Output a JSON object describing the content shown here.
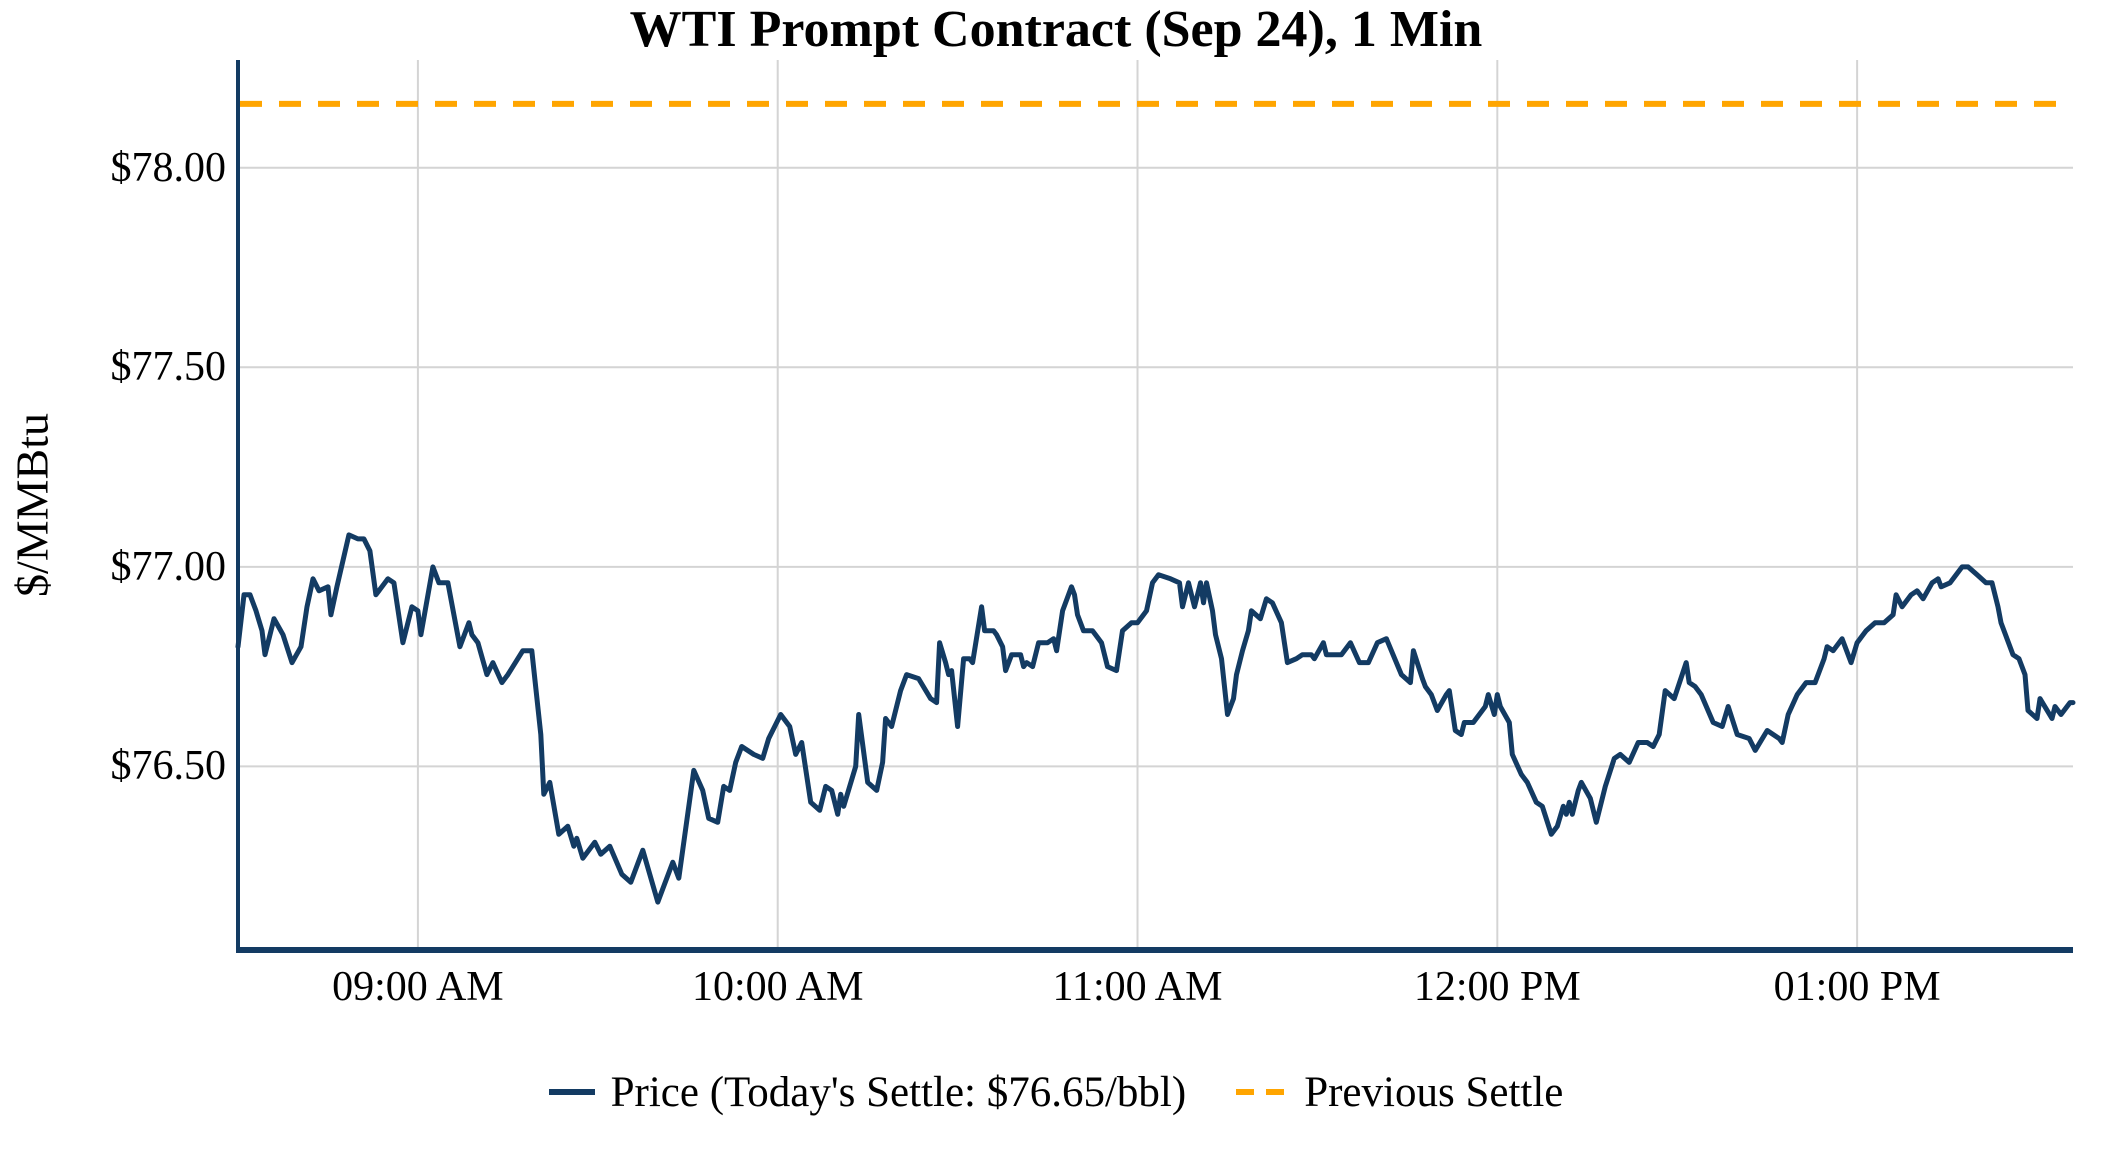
{
  "title": "WTI Prompt Contract (Sep 24), 1 Min",
  "y_axis_title": "$/MMBtu",
  "legend": {
    "price_label": "Price (Today's Settle: $76.65/bbl)",
    "previous_settle_label": "Previous Settle"
  },
  "colors": {
    "price_line": "#133b63",
    "previous_settle_line": "#ffa500",
    "gridline": "#d4d4d4",
    "axis": "#133b63",
    "text": "#000000",
    "background": "#ffffff"
  },
  "chart_data": {
    "type": "line",
    "title": "WTI Prompt Contract (Sep 24), 1 Min",
    "xlabel": "",
    "ylabel": "$/MMBtu",
    "grid": true,
    "legend_position": "bottom-center",
    "y_axis": {
      "ticks": [
        {
          "label": "$78.00",
          "value": 78.0
        },
        {
          "label": "$77.50",
          "value": 77.5
        },
        {
          "label": "$77.00",
          "value": 77.0
        },
        {
          "label": "$76.50",
          "value": 76.5
        }
      ],
      "ylim": [
        76.04,
        78.27
      ]
    },
    "x_axis": {
      "unit": "minutes after 08:30 AM",
      "domain": [
        0,
        306
      ],
      "ticks": [
        {
          "label": "09:00 AM",
          "minutes": 30
        },
        {
          "label": "10:00 AM",
          "minutes": 90
        },
        {
          "label": "11:00 AM",
          "minutes": 150
        },
        {
          "label": "12:00 PM",
          "minutes": 210
        },
        {
          "label": "01:00 PM",
          "minutes": 270
        }
      ]
    },
    "previous_settle": 78.16,
    "todays_settle": 76.65,
    "series": [
      {
        "name": "Price",
        "style": "solid",
        "points": [
          [
            0,
            76.8
          ],
          [
            1,
            76.93
          ],
          [
            2,
            76.93
          ],
          [
            3,
            76.89
          ],
          [
            4,
            76.84
          ],
          [
            4.5,
            76.78
          ],
          [
            6,
            76.87
          ],
          [
            7.5,
            76.83
          ],
          [
            9,
            76.76
          ],
          [
            10.5,
            76.8
          ],
          [
            11.5,
            76.9
          ],
          [
            12.5,
            76.97
          ],
          [
            13.5,
            76.94
          ],
          [
            15,
            76.95
          ],
          [
            15.5,
            76.88
          ],
          [
            16.5,
            76.95
          ],
          [
            18.5,
            77.08
          ],
          [
            20,
            77.07
          ],
          [
            21,
            77.07
          ],
          [
            22,
            77.04
          ],
          [
            23,
            76.93
          ],
          [
            25,
            76.97
          ],
          [
            26,
            76.96
          ],
          [
            27.5,
            76.81
          ],
          [
            29,
            76.9
          ],
          [
            30,
            76.89
          ],
          [
            30.5,
            76.83
          ],
          [
            32.5,
            77.0
          ],
          [
            33.5,
            76.96
          ],
          [
            35,
            76.96
          ],
          [
            37,
            76.8
          ],
          [
            38.5,
            76.86
          ],
          [
            39,
            76.83
          ],
          [
            40,
            76.81
          ],
          [
            41.5,
            76.73
          ],
          [
            42.5,
            76.76
          ],
          [
            44,
            76.71
          ],
          [
            45,
            76.73
          ],
          [
            47.5,
            76.79
          ],
          [
            49,
            76.79
          ],
          [
            50.5,
            76.58
          ],
          [
            51,
            76.43
          ],
          [
            52,
            76.46
          ],
          [
            53.5,
            76.33
          ],
          [
            55,
            76.35
          ],
          [
            56,
            76.3
          ],
          [
            56.5,
            76.32
          ],
          [
            57.5,
            76.27
          ],
          [
            59.5,
            76.31
          ],
          [
            60.5,
            76.28
          ],
          [
            62,
            76.3
          ],
          [
            64,
            76.23
          ],
          [
            65.5,
            76.21
          ],
          [
            67.5,
            76.29
          ],
          [
            70,
            76.16
          ],
          [
            71,
            76.2
          ],
          [
            72.5,
            76.26
          ],
          [
            73.5,
            76.22
          ],
          [
            76,
            76.49
          ],
          [
            77.5,
            76.44
          ],
          [
            78.5,
            76.37
          ],
          [
            80,
            76.36
          ],
          [
            81,
            76.45
          ],
          [
            82,
            76.44
          ],
          [
            83,
            76.51
          ],
          [
            84,
            76.55
          ],
          [
            86,
            76.53
          ],
          [
            87.5,
            76.52
          ],
          [
            88.5,
            76.57
          ],
          [
            90.5,
            76.63
          ],
          [
            92,
            76.6
          ],
          [
            93,
            76.53
          ],
          [
            94,
            76.56
          ],
          [
            95.5,
            76.41
          ],
          [
            97,
            76.39
          ],
          [
            98,
            76.45
          ],
          [
            99,
            76.44
          ],
          [
            100,
            76.38
          ],
          [
            100.5,
            76.43
          ],
          [
            101,
            76.4
          ],
          [
            103,
            76.5
          ],
          [
            103.5,
            76.63
          ],
          [
            105,
            76.46
          ],
          [
            106.5,
            76.44
          ],
          [
            107.5,
            76.51
          ],
          [
            108,
            76.62
          ],
          [
            109,
            76.6
          ],
          [
            110.5,
            76.69
          ],
          [
            111.5,
            76.73
          ],
          [
            113.5,
            76.72
          ],
          [
            115.5,
            76.67
          ],
          [
            116.5,
            76.66
          ],
          [
            117,
            76.81
          ],
          [
            118,
            76.76
          ],
          [
            118.5,
            76.73
          ],
          [
            119,
            76.74
          ],
          [
            120,
            76.6
          ],
          [
            121,
            76.77
          ],
          [
            122,
            76.77
          ],
          [
            122.5,
            76.76
          ],
          [
            124,
            76.9
          ],
          [
            124.5,
            76.84
          ],
          [
            126,
            76.84
          ],
          [
            126.5,
            76.83
          ],
          [
            127.5,
            76.8
          ],
          [
            128,
            76.74
          ],
          [
            129,
            76.78
          ],
          [
            130.5,
            76.78
          ],
          [
            131,
            76.75
          ],
          [
            131.5,
            76.76
          ],
          [
            132.5,
            76.75
          ],
          [
            133.5,
            76.81
          ],
          [
            135,
            76.81
          ],
          [
            136,
            76.82
          ],
          [
            136.5,
            76.79
          ],
          [
            137.5,
            76.89
          ],
          [
            139,
            76.95
          ],
          [
            139.5,
            76.93
          ],
          [
            140,
            76.88
          ],
          [
            141,
            76.84
          ],
          [
            142.5,
            76.84
          ],
          [
            144,
            76.81
          ],
          [
            144.5,
            76.78
          ],
          [
            145,
            76.75
          ],
          [
            146.5,
            76.74
          ],
          [
            147.5,
            76.84
          ],
          [
            149,
            76.86
          ],
          [
            150,
            76.86
          ],
          [
            151.5,
            76.89
          ],
          [
            152.5,
            76.96
          ],
          [
            153.5,
            76.98
          ],
          [
            155.5,
            76.97
          ],
          [
            157,
            76.96
          ],
          [
            157.5,
            76.9
          ],
          [
            158.5,
            76.96
          ],
          [
            159.5,
            76.9
          ],
          [
            160.5,
            76.96
          ],
          [
            161,
            76.91
          ],
          [
            161.5,
            76.96
          ],
          [
            162.5,
            76.89
          ],
          [
            163,
            76.83
          ],
          [
            164,
            76.77
          ],
          [
            164.5,
            76.7
          ],
          [
            165,
            76.63
          ],
          [
            166,
            76.67
          ],
          [
            166.5,
            76.73
          ],
          [
            167.5,
            76.79
          ],
          [
            168.5,
            76.84
          ],
          [
            169,
            76.89
          ],
          [
            170.5,
            76.87
          ],
          [
            171.5,
            76.92
          ],
          [
            172.5,
            76.91
          ],
          [
            174,
            76.86
          ],
          [
            174.5,
            76.81
          ],
          [
            175,
            76.76
          ],
          [
            176.5,
            76.77
          ],
          [
            177.5,
            76.78
          ],
          [
            179,
            76.78
          ],
          [
            179.5,
            76.77
          ],
          [
            181,
            76.81
          ],
          [
            181.5,
            76.78
          ],
          [
            184,
            76.78
          ],
          [
            185.5,
            76.81
          ],
          [
            187,
            76.76
          ],
          [
            188.5,
            76.76
          ],
          [
            190,
            76.81
          ],
          [
            191.5,
            76.82
          ],
          [
            194,
            76.73
          ],
          [
            195.5,
            76.71
          ],
          [
            196,
            76.79
          ],
          [
            197.5,
            76.72
          ],
          [
            198,
            76.7
          ],
          [
            199,
            76.68
          ],
          [
            200,
            76.64
          ],
          [
            201.5,
            76.68
          ],
          [
            202,
            76.69
          ],
          [
            203,
            76.59
          ],
          [
            204,
            76.58
          ],
          [
            204.5,
            76.61
          ],
          [
            206,
            76.61
          ],
          [
            208,
            76.65
          ],
          [
            208.5,
            76.68
          ],
          [
            209.5,
            76.63
          ],
          [
            210,
            76.68
          ],
          [
            210.5,
            76.65
          ],
          [
            212,
            76.61
          ],
          [
            212.5,
            76.53
          ],
          [
            214,
            76.48
          ],
          [
            215,
            76.46
          ],
          [
            216.5,
            76.41
          ],
          [
            217.5,
            76.4
          ],
          [
            219,
            76.33
          ],
          [
            220,
            76.35
          ],
          [
            221,
            76.4
          ],
          [
            221.5,
            76.38
          ],
          [
            222,
            76.41
          ],
          [
            222.5,
            76.38
          ],
          [
            223.5,
            76.44
          ],
          [
            224,
            76.46
          ],
          [
            225.5,
            76.42
          ],
          [
            226.5,
            76.36
          ],
          [
            228,
            76.45
          ],
          [
            229.5,
            76.52
          ],
          [
            230.5,
            76.53
          ],
          [
            232,
            76.51
          ],
          [
            233.5,
            76.56
          ],
          [
            235,
            76.56
          ],
          [
            236,
            76.55
          ],
          [
            237,
            76.58
          ],
          [
            238,
            76.69
          ],
          [
            239.5,
            76.67
          ],
          [
            241.5,
            76.76
          ],
          [
            242,
            76.71
          ],
          [
            243,
            76.7
          ],
          [
            244,
            76.68
          ],
          [
            246,
            76.61
          ],
          [
            247.5,
            76.6
          ],
          [
            248.5,
            76.65
          ],
          [
            250,
            76.58
          ],
          [
            252,
            76.57
          ],
          [
            253,
            76.54
          ],
          [
            255,
            76.59
          ],
          [
            257,
            76.57
          ],
          [
            257.5,
            76.56
          ],
          [
            258.5,
            76.63
          ],
          [
            260,
            76.68
          ],
          [
            261.5,
            76.71
          ],
          [
            263,
            76.71
          ],
          [
            264.5,
            76.77
          ],
          [
            265,
            76.8
          ],
          [
            266,
            76.79
          ],
          [
            267,
            76.81
          ],
          [
            267.5,
            76.82
          ],
          [
            269,
            76.76
          ],
          [
            270,
            76.81
          ],
          [
            271.5,
            76.84
          ],
          [
            273,
            76.86
          ],
          [
            274.5,
            76.86
          ],
          [
            276,
            76.88
          ],
          [
            276.5,
            76.93
          ],
          [
            277.5,
            76.9
          ],
          [
            279,
            76.93
          ],
          [
            280,
            76.94
          ],
          [
            281,
            76.92
          ],
          [
            282.5,
            76.96
          ],
          [
            283.5,
            76.97
          ],
          [
            284,
            76.95
          ],
          [
            285.5,
            76.96
          ],
          [
            287.5,
            77.0
          ],
          [
            288.5,
            77.0
          ],
          [
            290,
            76.98
          ],
          [
            291.5,
            76.96
          ],
          [
            292.5,
            76.96
          ],
          [
            293.5,
            76.9
          ],
          [
            294,
            76.86
          ],
          [
            295,
            76.82
          ],
          [
            296,
            76.78
          ],
          [
            297,
            76.77
          ],
          [
            298,
            76.73
          ],
          [
            298.5,
            76.64
          ],
          [
            300,
            76.62
          ],
          [
            300.5,
            76.67
          ],
          [
            302.5,
            76.62
          ],
          [
            303,
            76.65
          ],
          [
            304,
            76.63
          ],
          [
            305.5,
            76.66
          ],
          [
            306,
            76.66
          ]
        ]
      }
    ]
  }
}
